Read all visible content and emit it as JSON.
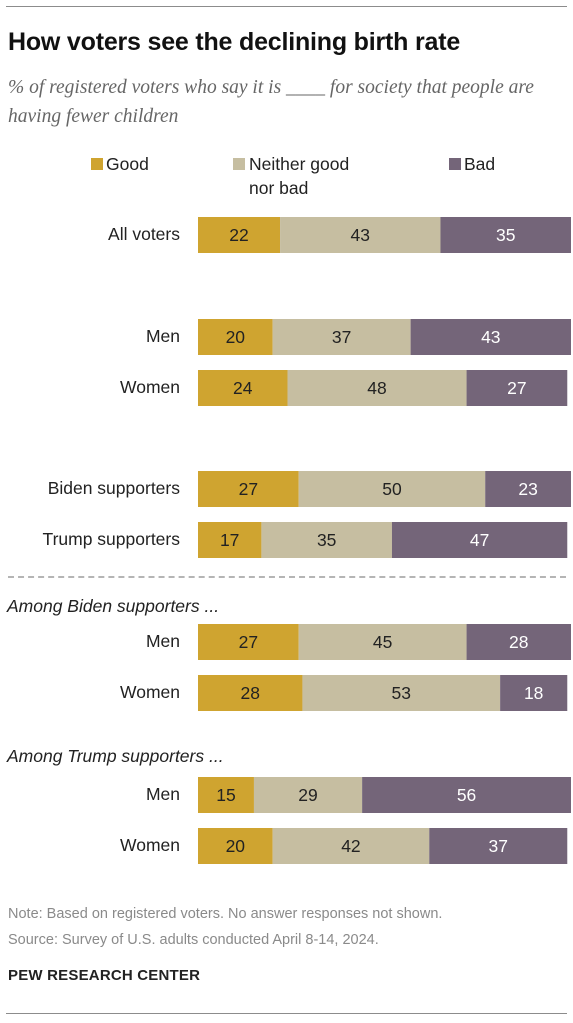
{
  "title": "How voters see the declining birth rate",
  "subtitle": "% of registered voters who say it is ____ for society that people are having fewer children",
  "colors": {
    "good": "#cfa430",
    "neither": "#c6bea1",
    "bad": "#746579"
  },
  "chart_data": {
    "type": "bar",
    "orientation": "horizontal",
    "stacked": true,
    "xlim": [
      0,
      100
    ],
    "legend": {
      "placement": "top",
      "entries": [
        "Good",
        "Neither good nor bad",
        "Bad"
      ]
    },
    "series": [
      {
        "name": "Good",
        "values": [
          22,
          20,
          24,
          27,
          17,
          27,
          28,
          15,
          20
        ]
      },
      {
        "name": "Neither good nor bad",
        "values": [
          43,
          37,
          48,
          50,
          35,
          45,
          53,
          29,
          42
        ]
      },
      {
        "name": "Bad",
        "values": [
          35,
          43,
          27,
          23,
          47,
          28,
          18,
          56,
          37
        ]
      }
    ],
    "categories": [
      "All voters",
      "Men",
      "Women",
      "Biden supporters",
      "Trump supporters",
      "Men",
      "Women",
      "Men",
      "Women"
    ],
    "groups": [
      {
        "label": "",
        "rows": [
          0,
          1,
          2,
          3,
          4
        ]
      },
      {
        "label": "Among Biden supporters ...",
        "rows": [
          5,
          6
        ]
      },
      {
        "label": "Among Trump supporters ...",
        "rows": [
          7,
          8
        ]
      }
    ]
  },
  "legend": {
    "good": "Good",
    "neither_line1": "Neither good",
    "neither_line2": "nor bad",
    "bad": "Bad"
  },
  "groups": {
    "biden": "Among Biden supporters ...",
    "trump": "Among Trump supporters ..."
  },
  "note": "Note: Based on registered voters. No answer responses not shown.",
  "source": "Source: Survey of U.S. adults conducted April 8-14, 2024.",
  "brand": "PEW RESEARCH CENTER"
}
